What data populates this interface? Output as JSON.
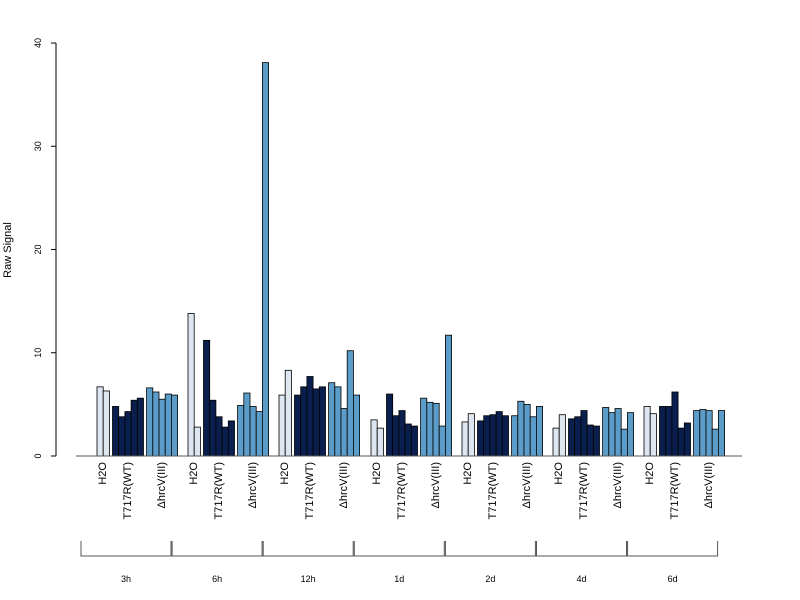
{
  "chart_data": {
    "type": "bar",
    "ylabel": "Raw Signal",
    "ylim": [
      0,
      40
    ],
    "yticks": [
      0,
      10,
      20,
      30,
      40
    ],
    "colors": {
      "H2O": "#dde6f1",
      "T717R(WT)": "#0a1f4d",
      "ΔhrcV(III)": "#5b9dc8"
    },
    "groups": [
      {
        "time": "3h",
        "treatments": [
          {
            "label": "H2O",
            "values": [
              6.7,
              6.3
            ]
          },
          {
            "label": "T717R(WT)",
            "values": [
              4.8,
              3.8,
              4.3,
              5.4,
              5.6
            ]
          },
          {
            "label": "ΔhrcV(III)",
            "values": [
              6.6,
              6.2,
              5.5,
              6.0,
              5.9
            ]
          }
        ]
      },
      {
        "time": "6h",
        "treatments": [
          {
            "label": "H2O",
            "values": [
              13.8,
              2.8
            ]
          },
          {
            "label": "T717R(WT)",
            "values": [
              11.2,
              5.4,
              3.8,
              2.8,
              3.4
            ]
          },
          {
            "label": "ΔhrcV(III)",
            "values": [
              4.9,
              6.1,
              4.8,
              4.3,
              38.1
            ]
          }
        ]
      },
      {
        "time": "12h",
        "treatments": [
          {
            "label": "H2O",
            "values": [
              5.9,
              8.3
            ]
          },
          {
            "label": "T717R(WT)",
            "values": [
              5.9,
              6.7,
              7.7,
              6.5,
              6.7
            ]
          },
          {
            "label": "ΔhrcV(III)",
            "values": [
              7.1,
              6.7,
              4.6,
              10.2,
              5.9
            ]
          }
        ]
      },
      {
        "time": "1d",
        "treatments": [
          {
            "label": "H2O",
            "values": [
              3.5,
              2.7
            ]
          },
          {
            "label": "T717R(WT)",
            "values": [
              6.0,
              3.9,
              4.4,
              3.1,
              2.9
            ]
          },
          {
            "label": "ΔhrcV(III)",
            "values": [
              5.6,
              5.2,
              5.1,
              2.9,
              11.7
            ]
          }
        ]
      },
      {
        "time": "2d",
        "treatments": [
          {
            "label": "H2O",
            "values": [
              3.3,
              4.1
            ]
          },
          {
            "label": "T717R(WT)",
            "values": [
              3.4,
              3.9,
              4.0,
              4.3,
              3.9
            ]
          },
          {
            "label": "ΔhrcV(III)",
            "values": [
              3.9,
              5.3,
              5.0,
              3.8,
              4.8
            ]
          }
        ]
      },
      {
        "time": "4d",
        "treatments": [
          {
            "label": "H2O",
            "values": [
              2.7,
              4.0
            ]
          },
          {
            "label": "T717R(WT)",
            "values": [
              3.6,
              3.8,
              4.4,
              3.0,
              2.9
            ]
          },
          {
            "label": "ΔhrcV(III)",
            "values": [
              4.7,
              4.2,
              4.6,
              2.6,
              4.2
            ]
          }
        ]
      },
      {
        "time": "6d",
        "treatments": [
          {
            "label": "H2O",
            "values": [
              4.8,
              4.1
            ]
          },
          {
            "label": "T717R(WT)",
            "values": [
              4.8,
              4.8,
              6.2,
              2.7,
              3.2
            ]
          },
          {
            "label": "ΔhrcV(III)",
            "values": [
              4.4,
              4.5,
              4.4,
              2.6,
              4.4
            ]
          }
        ]
      }
    ]
  }
}
